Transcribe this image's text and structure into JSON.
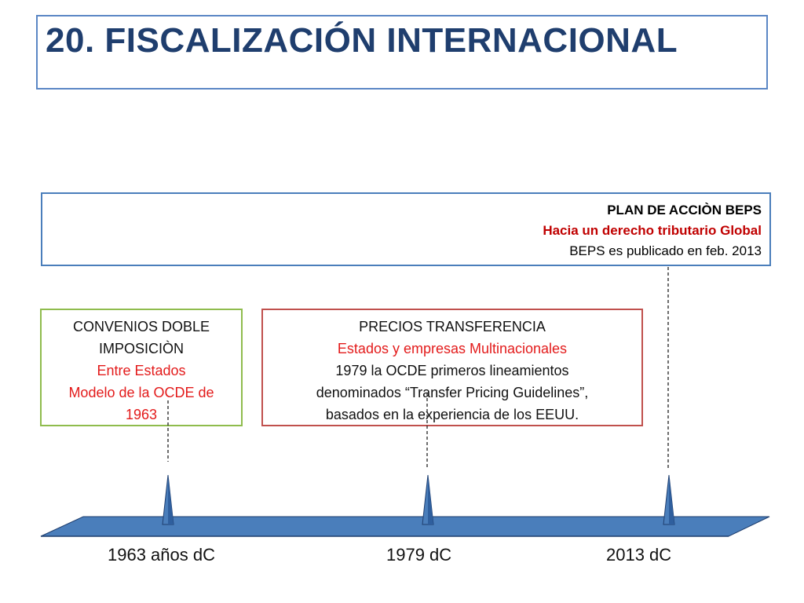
{
  "title": "20. FISCALIZACIÓN INTERNACIONAL",
  "beps": {
    "line1": "PLAN DE ACCIÒN BEPS",
    "line2": "Hacia un derecho tributario Global",
    "line3": "BEPS es publicado en feb. 2013"
  },
  "convenios": {
    "line1": "CONVENIOS DOBLE",
    "line2": "IMPOSICIÒN",
    "line3": "Entre Estados",
    "line4": "Modelo de la OCDE de",
    "line5": "1963"
  },
  "precios": {
    "line1": "PRECIOS TRANSFERENCIA",
    "line2": "Estados y empresas Multinacionales",
    "line3": "1979 la OCDE primeros lineamientos",
    "line4": "denominados “Transfer Pricing Guidelines”,",
    "line5": "basados en la experiencia de los EEUU."
  },
  "timeline": {
    "years": [
      "1963 años dC",
      "1979 dC",
      "2013 dC"
    ]
  },
  "colors": {
    "title": "#1f3e6e",
    "timeline_fill": "#4a7ebb",
    "green_border": "#8fbc4d",
    "red_border": "#c0504d",
    "accent_red": "#e31b1b"
  }
}
